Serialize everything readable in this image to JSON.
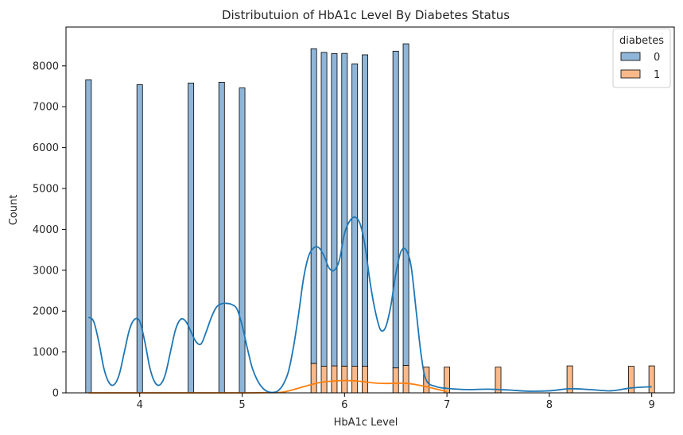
{
  "chart_data": {
    "type": "bar",
    "title": "Distributuion of HbA1c Level By Diabetes Status",
    "xlabel": "HbA1c Level",
    "ylabel": "Count",
    "xlim": [
      3.28,
      9.22
    ],
    "ylim": [
      0,
      8950
    ],
    "xticks": [
      4,
      5,
      6,
      7,
      8,
      9
    ],
    "yticks": [
      0,
      1000,
      2000,
      3000,
      4000,
      5000,
      6000,
      7000,
      8000
    ],
    "stacked": true,
    "bin_width": 0.055,
    "legend": {
      "title": "diabetes",
      "position": "top-right"
    },
    "series": [
      {
        "name": "0",
        "color": "#1f77b4",
        "bar_fill": "#8fb6d8",
        "x": [
          3.5,
          4.0,
          4.5,
          4.8,
          5.0,
          5.7,
          5.8,
          5.9,
          6.0,
          6.1,
          6.2,
          6.5,
          6.6
        ],
        "values": [
          7660,
          7540,
          7580,
          7600,
          7460,
          7700,
          7680,
          7640,
          7650,
          7400,
          7620,
          7750,
          7870
        ]
      },
      {
        "name": "1",
        "color": "#ff7f0e",
        "bar_fill": "#f9b98a",
        "x": [
          5.7,
          5.8,
          5.9,
          6.0,
          6.1,
          6.2,
          6.5,
          6.6,
          6.8,
          7.0,
          7.5,
          8.2,
          8.8,
          9.0
        ],
        "values": [
          720,
          650,
          660,
          655,
          650,
          650,
          610,
          670,
          630,
          630,
          630,
          660,
          650,
          660
        ]
      }
    ],
    "kde": [
      {
        "name": "0",
        "color": "#1f77b4",
        "x": [
          3.5,
          3.55,
          3.6,
          3.65,
          3.7,
          3.75,
          3.8,
          3.85,
          3.9,
          3.95,
          4.0,
          4.05,
          4.1,
          4.15,
          4.2,
          4.25,
          4.3,
          4.35,
          4.4,
          4.45,
          4.5,
          4.55,
          4.6,
          4.65,
          4.7,
          4.75,
          4.8,
          4.85,
          4.9,
          4.95,
          5.0,
          5.05,
          5.1,
          5.15,
          5.2,
          5.25,
          5.3,
          5.35,
          5.4,
          5.45,
          5.5,
          5.55,
          5.6,
          5.65,
          5.7,
          5.75,
          5.8,
          5.85,
          5.9,
          5.95,
          6.0,
          6.05,
          6.1,
          6.15,
          6.2,
          6.25,
          6.3,
          6.35,
          6.4,
          6.45,
          6.5,
          6.55,
          6.6,
          6.65,
          6.7,
          6.75,
          6.8,
          6.9,
          7.0,
          7.2,
          7.4,
          7.6,
          7.8,
          8.0,
          8.2,
          8.4,
          8.6,
          8.8,
          9.0
        ],
        "y": [
          1850,
          1750,
          1250,
          600,
          250,
          200,
          450,
          1000,
          1550,
          1800,
          1750,
          1250,
          600,
          250,
          200,
          450,
          1000,
          1550,
          1800,
          1750,
          1500,
          1250,
          1200,
          1500,
          1850,
          2100,
          2180,
          2190,
          2160,
          2050,
          1650,
          1100,
          600,
          300,
          120,
          30,
          10,
          50,
          200,
          500,
          1100,
          1900,
          2800,
          3350,
          3550,
          3550,
          3350,
          3050,
          3000,
          3250,
          3900,
          4200,
          4300,
          4150,
          3600,
          2700,
          2000,
          1550,
          1600,
          2100,
          2900,
          3450,
          3500,
          3100,
          2000,
          900,
          300,
          150,
          110,
          80,
          90,
          70,
          40,
          50,
          100,
          80,
          50,
          120,
          150
        ]
      },
      {
        "name": "1",
        "color": "#ff7f0e",
        "x": [
          3.5,
          4.0,
          4.5,
          5.0,
          5.2,
          5.4,
          5.6,
          5.7,
          5.8,
          5.9,
          6.0,
          6.1,
          6.2,
          6.3,
          6.4,
          6.5,
          6.6,
          6.7,
          6.8,
          6.9,
          7.0
        ],
        "y": [
          0,
          0,
          0,
          0,
          5,
          20,
          150,
          220,
          270,
          290,
          300,
          295,
          270,
          240,
          230,
          235,
          235,
          200,
          150,
          90,
          30
        ]
      }
    ]
  }
}
